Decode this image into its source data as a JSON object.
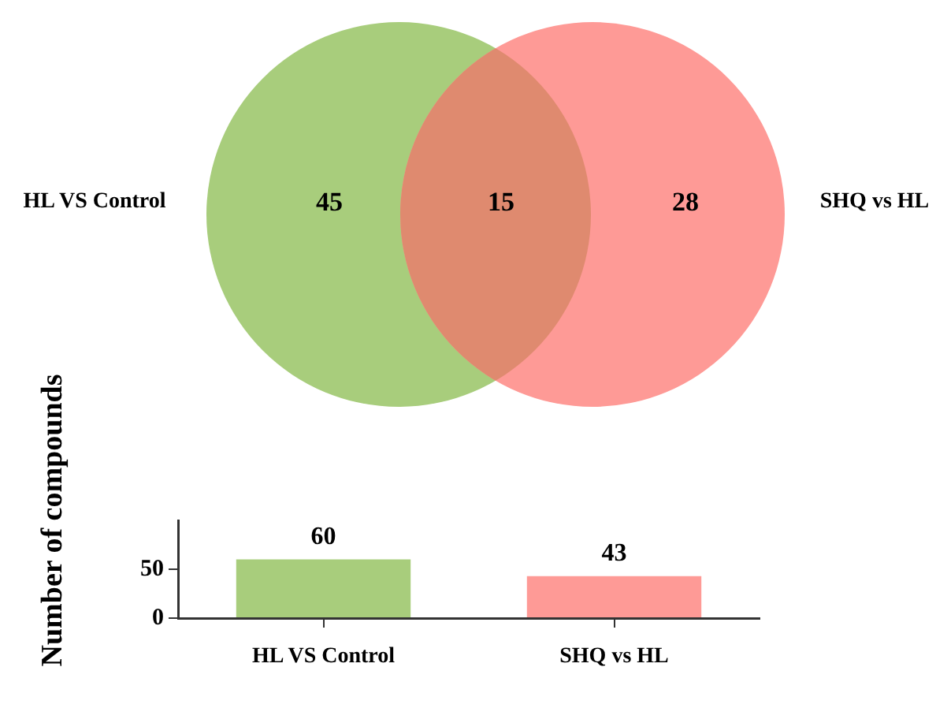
{
  "chart_data": [
    {
      "type": "other",
      "categories": [
        "HL VS Control",
        null,
        "SHQ vs HL"
      ],
      "values": [
        45,
        15,
        28
      ],
      "colors": [
        "#a8cd7c",
        "#df8a6f",
        "#fe9a96"
      ],
      "data_labels": true
    },
    {
      "type": "bar",
      "ylabel": "Number of compounds",
      "categories": [
        "HL VS Control",
        "SHQ vs HL"
      ],
      "values": [
        60,
        43
      ],
      "colors": [
        "#a8cd7c",
        "#fe9a96"
      ],
      "ylim": [
        0,
        100
      ],
      "yticks": [
        0,
        50
      ],
      "data_labels": true
    }
  ]
}
